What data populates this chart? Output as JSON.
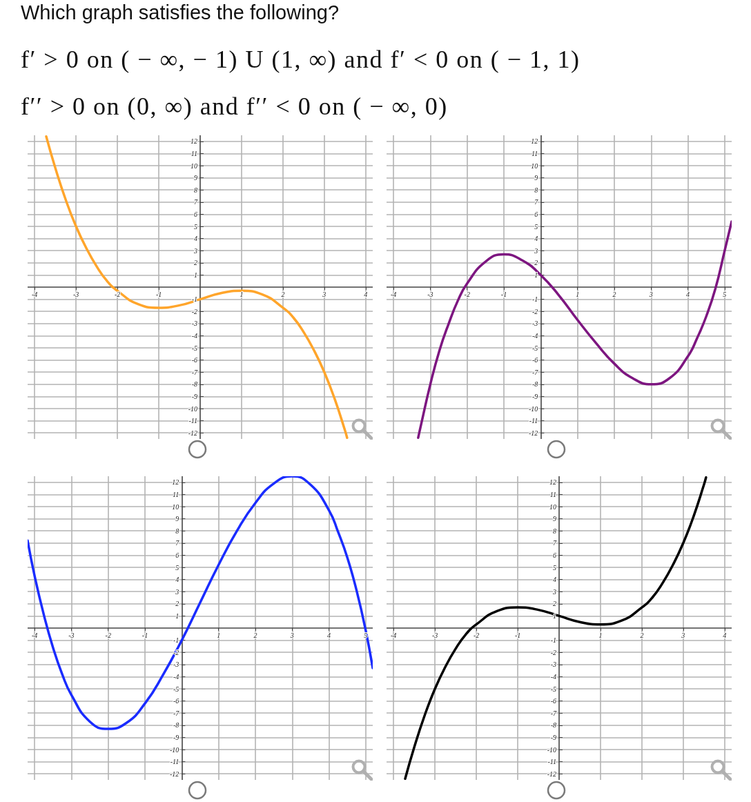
{
  "chart_data": [
    {
      "type": "line",
      "title": "Which graph satisfies the following?",
      "annotations": [
        "f′ > 0 on ( − ∞, − 1) U (1, ∞) and f′ < 0 on ( − 1, 1)",
        "f′′ > 0 on (0, ∞) and f′′ < 0 on ( − ∞, 0)"
      ],
      "x": [
        -3.72,
        -3.5,
        -3.25,
        -3,
        -2.75,
        -2.5,
        -2.25,
        -2,
        -1.5,
        -1,
        -0.5,
        0,
        0.5,
        1,
        1.5,
        2,
        2.25,
        2.5,
        2.75,
        3,
        3.25,
        3.5,
        3.55
      ],
      "values": [
        12.4,
        9.8,
        7.2,
        5,
        3.2,
        1.7,
        0.5,
        -0.3,
        -1.4,
        -1.7,
        -1.5,
        -1,
        -0.5,
        -0.3,
        -0.6,
        -1.7,
        -2.5,
        -3.7,
        -5.2,
        -7,
        -9.2,
        -11.8,
        -12.4
      ],
      "color": "#ffa52b",
      "xlim": [
        -4.17,
        4.17
      ],
      "ylim": [
        -12.5,
        12.5
      ],
      "xticks": [
        -4,
        -3,
        -2,
        -1,
        1,
        2,
        3,
        4
      ],
      "yticks": [
        -12,
        -11,
        -10,
        -9,
        -8,
        -7,
        -6,
        -5,
        -4,
        -3,
        -2,
        -1,
        1,
        2,
        3,
        4,
        5,
        6,
        7,
        8,
        9,
        10,
        11,
        12
      ],
      "grid": true
    },
    {
      "type": "line",
      "x": [
        -3.33,
        -3.25,
        -3,
        -2.75,
        -2.5,
        -2.25,
        -2,
        -1.5,
        -1,
        -0.5,
        0,
        0.5,
        1,
        1.5,
        2,
        2.5,
        3,
        3.5,
        4,
        4.25,
        4.5,
        4.75,
        5,
        5.19
      ],
      "values": [
        -12.4,
        -11.3,
        -8,
        -5.2,
        -3.0,
        -1.1,
        0.3,
        2.1,
        2.7,
        2.2,
        1,
        -0.7,
        -2.7,
        -4.6,
        -6.3,
        -7.5,
        -8,
        -7.5,
        -5.7,
        -4.2,
        -2.4,
        -0.1,
        3.0,
        5.4
      ],
      "color": "#7d1680",
      "xlim": [
        -4.19,
        5.19
      ],
      "ylim": [
        -12.5,
        12.5
      ],
      "xticks": [
        -4,
        -3,
        -2,
        -1,
        1,
        2,
        3,
        4,
        5
      ],
      "yticks": [
        -12,
        -11,
        -10,
        -9,
        -8,
        -7,
        -6,
        -5,
        -4,
        -3,
        -2,
        -1,
        1,
        2,
        3,
        4,
        5,
        6,
        7,
        8,
        9,
        10,
        11,
        12
      ],
      "grid": true
    },
    {
      "type": "line",
      "x": [
        -4.19,
        -4,
        -3.75,
        -3.5,
        -3.25,
        -3,
        -2.5,
        -2,
        -1.5,
        -1,
        -0.5,
        0,
        0.5,
        1,
        1.5,
        2,
        2.5,
        3,
        3.5,
        4,
        4.25,
        4.5,
        4.75,
        5,
        5.19
      ],
      "values": [
        7.2,
        4.3,
        1.1,
        -1.6,
        -3.8,
        -5.5,
        -7.7,
        -8.3,
        -7.8,
        -6.2,
        -3.8,
        -1,
        2.1,
        5.2,
        8,
        10.3,
        11.9,
        12.5,
        11.8,
        9.7,
        7.9,
        5.8,
        3.1,
        -0.2,
        -3.3
      ],
      "color": "#1a2cff",
      "xlim": [
        -4.19,
        5.19
      ],
      "ylim": [
        -12.5,
        12.5
      ],
      "xticks": [
        -4,
        -3,
        -2,
        -1,
        1,
        2,
        3,
        4,
        5
      ],
      "yticks": [
        -12,
        -11,
        -10,
        -9,
        -8,
        -7,
        -6,
        -5,
        -4,
        -3,
        -2,
        -1,
        1,
        2,
        3,
        4,
        5,
        6,
        7,
        8,
        9,
        10,
        11,
        12
      ],
      "grid": true
    },
    {
      "type": "line",
      "x": [
        -3.72,
        -3.5,
        -3.25,
        -3,
        -2.75,
        -2.5,
        -2.25,
        -2,
        -1.5,
        -1,
        -0.5,
        0,
        0.5,
        1,
        1.5,
        2,
        2.25,
        2.5,
        2.75,
        3,
        3.25,
        3.5,
        3.55
      ],
      "values": [
        -12.4,
        -9.8,
        -7.2,
        -5,
        -3.2,
        -1.7,
        -0.5,
        0.3,
        1.4,
        1.7,
        1.5,
        1,
        0.5,
        0.3,
        0.6,
        1.7,
        2.5,
        3.7,
        5.2,
        7,
        9.2,
        11.8,
        12.4
      ],
      "color": "#000000",
      "xlim": [
        -4.17,
        4.17
      ],
      "ylim": [
        -12.5,
        12.5
      ],
      "xticks": [
        -4,
        -3,
        -2,
        -1,
        1,
        2,
        3,
        4
      ],
      "yticks": [
        -12,
        -11,
        -10,
        -9,
        -8,
        -7,
        -6,
        -5,
        -4,
        -3,
        -2,
        -1,
        1,
        2,
        3,
        4,
        5,
        6,
        7,
        8,
        9,
        10,
        11,
        12
      ],
      "grid": true
    }
  ]
}
